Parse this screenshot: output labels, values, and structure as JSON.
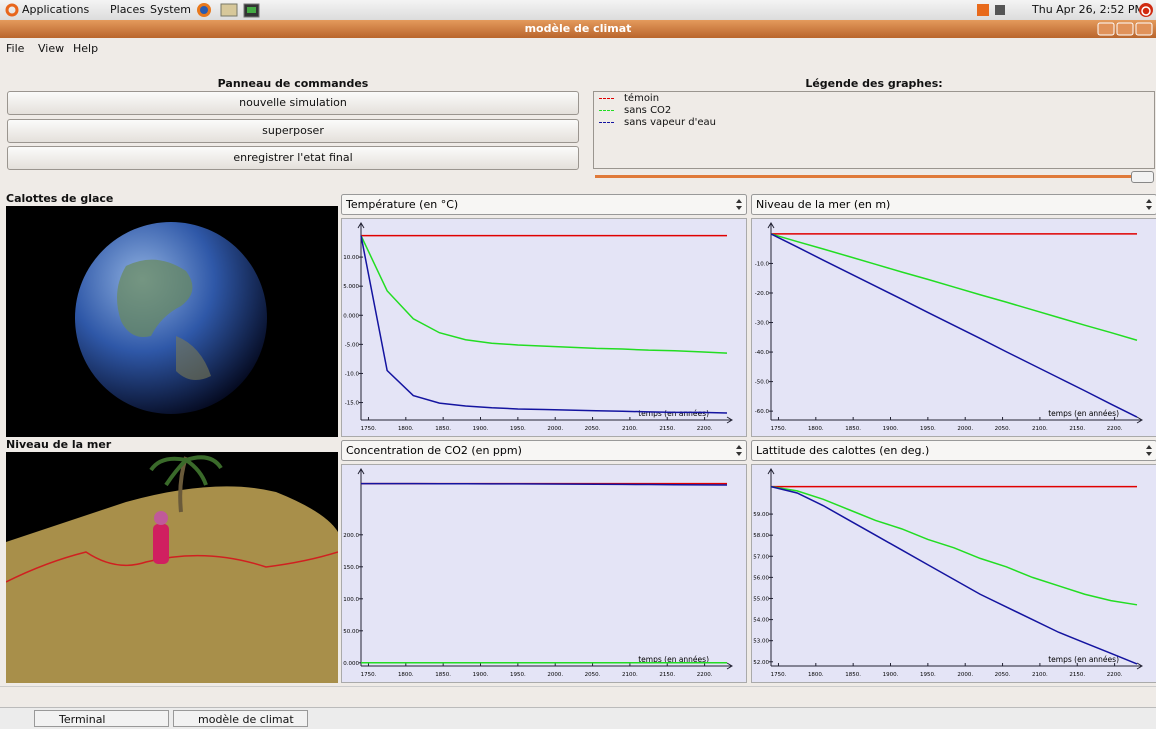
{
  "top_panel": {
    "menus": [
      "Applications",
      "Places",
      "System"
    ],
    "clock": "Thu Apr 26,  2:52 PM"
  },
  "window": {
    "title": "modèle de climat",
    "menu": [
      "File",
      "View",
      "Help"
    ]
  },
  "controls": {
    "title": "Panneau de commandes",
    "buttons": [
      "nouvelle simulation",
      "superposer",
      "enregistrer l'etat final"
    ]
  },
  "legend": {
    "title": "Légende des graphes:",
    "items": [
      {
        "name": "témoin",
        "color": "#e00000"
      },
      {
        "name": "sans CO2",
        "color": "#22dd22"
      },
      {
        "name": "sans vapeur d'eau",
        "color": "#1414a0"
      }
    ]
  },
  "views": [
    "Calottes de glace",
    "Niveau de la mer"
  ],
  "chart_data": [
    {
      "type": "line",
      "title": "Température (en °C)",
      "x_label": "temps (en années)",
      "x": [
        1740,
        1775,
        1810,
        1845,
        1880,
        1915,
        1950,
        1985,
        2020,
        2055,
        2090,
        2125,
        2160,
        2195,
        2230
      ],
      "xlim": [
        1740,
        2230
      ],
      "xticks": [
        {
          "value": 1750,
          "label": "1750."
        },
        {
          "value": 1800,
          "label": "1800."
        },
        {
          "value": 1850,
          "label": "1850."
        },
        {
          "value": 1900,
          "label": "1900."
        },
        {
          "value": 1950,
          "label": "1950."
        },
        {
          "value": 2000,
          "label": "2000."
        },
        {
          "value": 2050,
          "label": "2050."
        },
        {
          "value": 2100,
          "label": "2100."
        },
        {
          "value": 2150,
          "label": "2150."
        },
        {
          "value": 2200,
          "label": "2200."
        }
      ],
      "ylim": [
        -18,
        15
      ],
      "yticks": [
        {
          "value": 10,
          "label": "10.00"
        },
        {
          "value": 5,
          "label": "5.000"
        },
        {
          "value": 0,
          "label": "0.000"
        },
        {
          "value": -5,
          "label": "-5.00"
        },
        {
          "value": -10,
          "label": "-10.0"
        },
        {
          "value": -15,
          "label": "-15.0"
        }
      ],
      "series": [
        {
          "color": "#e00000",
          "values": [
            13.7,
            13.7,
            13.7,
            13.7,
            13.7,
            13.7,
            13.7,
            13.7,
            13.7,
            13.7,
            13.7,
            13.7,
            13.7,
            13.7,
            13.7
          ]
        },
        {
          "color": "#22dd22",
          "values": [
            13.7,
            4.2,
            -0.6,
            -3.0,
            -4.2,
            -4.8,
            -5.1,
            -5.3,
            -5.5,
            -5.7,
            -5.8,
            -6.0,
            -6.1,
            -6.3,
            -6.5
          ]
        },
        {
          "color": "#1414a0",
          "values": [
            13.7,
            -9.5,
            -13.8,
            -15.1,
            -15.6,
            -15.9,
            -16.1,
            -16.2,
            -16.3,
            -16.4,
            -16.5,
            -16.6,
            -16.7,
            -16.7,
            -16.8
          ]
        }
      ]
    },
    {
      "type": "line",
      "title": "Niveau de la mer (en m)",
      "x_label": "temps (en années)",
      "x": [
        1740,
        1775,
        1810,
        1845,
        1880,
        1915,
        1950,
        1985,
        2020,
        2055,
        2090,
        2125,
        2160,
        2195,
        2230
      ],
      "xlim": [
        1740,
        2230
      ],
      "xticks": [
        {
          "value": 1750,
          "label": "1750."
        },
        {
          "value": 1800,
          "label": "1800."
        },
        {
          "value": 1850,
          "label": "1850."
        },
        {
          "value": 1900,
          "label": "1900."
        },
        {
          "value": 1950,
          "label": "1950."
        },
        {
          "value": 2000,
          "label": "2000."
        },
        {
          "value": 2050,
          "label": "2050."
        },
        {
          "value": 2100,
          "label": "2100."
        },
        {
          "value": 2150,
          "label": "2150."
        },
        {
          "value": 2200,
          "label": "2200."
        }
      ],
      "ylim": [
        -63,
        2
      ],
      "yticks": [
        {
          "value": -10,
          "label": "-10.0"
        },
        {
          "value": -20,
          "label": "-20.0"
        },
        {
          "value": -30,
          "label": "-30.0"
        },
        {
          "value": -40,
          "label": "-40.0"
        },
        {
          "value": -50,
          "label": "-50.0"
        },
        {
          "value": -60,
          "label": "-60.0"
        }
      ],
      "series": [
        {
          "color": "#e00000",
          "values": [
            0,
            0,
            0,
            0,
            0,
            0,
            0,
            0,
            0,
            0,
            0,
            0,
            0,
            0,
            0
          ]
        },
        {
          "color": "#22dd22",
          "values": [
            0,
            -2.6,
            -5.1,
            -7.7,
            -10.3,
            -12.9,
            -15.4,
            -18,
            -20.6,
            -23.1,
            -25.7,
            -28.3,
            -30.9,
            -33.4,
            -36
          ]
        },
        {
          "color": "#1414a0",
          "values": [
            0,
            -4.4,
            -8.9,
            -13.3,
            -17.7,
            -22.1,
            -26.6,
            -31,
            -35.4,
            -39.9,
            -44.3,
            -48.7,
            -53.1,
            -57.6,
            -62
          ]
        }
      ]
    },
    {
      "type": "line",
      "title": "Concentration de CO2 (en ppm)",
      "x_label": "temps (en années)",
      "x": [
        1740,
        1775,
        1810,
        1845,
        1880,
        1915,
        1950,
        1985,
        2020,
        2055,
        2090,
        2125,
        2160,
        2195,
        2230
      ],
      "xlim": [
        1740,
        2230
      ],
      "xticks": [
        {
          "value": 1750,
          "label": "1750."
        },
        {
          "value": 1800,
          "label": "1800."
        },
        {
          "value": 1850,
          "label": "1850."
        },
        {
          "value": 1900,
          "label": "1900."
        },
        {
          "value": 1950,
          "label": "1950."
        },
        {
          "value": 2000,
          "label": "2000."
        },
        {
          "value": 2050,
          "label": "2050."
        },
        {
          "value": 2100,
          "label": "2100."
        },
        {
          "value": 2150,
          "label": "2150."
        },
        {
          "value": 2200,
          "label": "2200."
        }
      ],
      "ylim": [
        -5,
        295
      ],
      "yticks": [
        {
          "value": 200,
          "label": "200.0"
        },
        {
          "value": 150,
          "label": "150.0"
        },
        {
          "value": 100,
          "label": "100.0"
        },
        {
          "value": 50,
          "label": "50.00"
        },
        {
          "value": 0,
          "label": "0.000"
        }
      ],
      "series": [
        {
          "color": "#e00000",
          "values": [
            280,
            280,
            280,
            280,
            280,
            280,
            280,
            280,
            280,
            280,
            280,
            280,
            280,
            280,
            280
          ]
        },
        {
          "color": "#22dd22",
          "values": [
            0,
            0,
            0,
            0,
            0,
            0,
            0,
            0,
            0,
            0,
            0,
            0,
            0,
            0,
            0
          ]
        },
        {
          "color": "#1414a0",
          "values": [
            280,
            280,
            279.9,
            279.8,
            279.7,
            279.6,
            279.5,
            279.3,
            279.1,
            278.9,
            278.7,
            278.5,
            278.3,
            278.1,
            277.9
          ]
        }
      ]
    },
    {
      "type": "line",
      "title": "Lattitude des calottes (en deg.)",
      "x_label": "temps (en années)",
      "x": [
        1740,
        1775,
        1810,
        1845,
        1880,
        1915,
        1950,
        1985,
        2020,
        2055,
        2090,
        2125,
        2160,
        2195,
        2230
      ],
      "xlim": [
        1740,
        2230
      ],
      "xticks": [
        {
          "value": 1750,
          "label": "1750."
        },
        {
          "value": 1800,
          "label": "1800."
        },
        {
          "value": 1850,
          "label": "1850."
        },
        {
          "value": 1900,
          "label": "1900."
        },
        {
          "value": 1950,
          "label": "1950."
        },
        {
          "value": 2000,
          "label": "2000."
        },
        {
          "value": 2050,
          "label": "2050."
        },
        {
          "value": 2100,
          "label": "2100."
        },
        {
          "value": 2150,
          "label": "2150."
        },
        {
          "value": 2200,
          "label": "2200."
        }
      ],
      "ylim": [
        51.8,
        60.9
      ],
      "yticks": [
        {
          "value": 59,
          "label": "59.00"
        },
        {
          "value": 58,
          "label": "58.00"
        },
        {
          "value": 57,
          "label": "57.00"
        },
        {
          "value": 56,
          "label": "56.00"
        },
        {
          "value": 55,
          "label": "55.00"
        },
        {
          "value": 54,
          "label": "54.00"
        },
        {
          "value": 53,
          "label": "53.00"
        },
        {
          "value": 52,
          "label": "52.00"
        }
      ],
      "series": [
        {
          "color": "#e00000",
          "values": [
            60.3,
            60.3,
            60.3,
            60.3,
            60.3,
            60.3,
            60.3,
            60.3,
            60.3,
            60.3,
            60.3,
            60.3,
            60.3,
            60.3,
            60.3
          ]
        },
        {
          "color": "#22dd22",
          "values": [
            60.3,
            60.1,
            59.7,
            59.2,
            58.7,
            58.3,
            57.8,
            57.4,
            56.9,
            56.5,
            56.0,
            55.6,
            55.2,
            54.9,
            54.7
          ]
        },
        {
          "color": "#1414a0",
          "values": [
            60.3,
            60.0,
            59.4,
            58.7,
            58.0,
            57.3,
            56.6,
            55.9,
            55.2,
            54.6,
            54.0,
            53.4,
            52.9,
            52.4,
            51.9
          ]
        }
      ]
    }
  ],
  "taskbar": [
    "Terminal",
    "modèle de climat"
  ]
}
